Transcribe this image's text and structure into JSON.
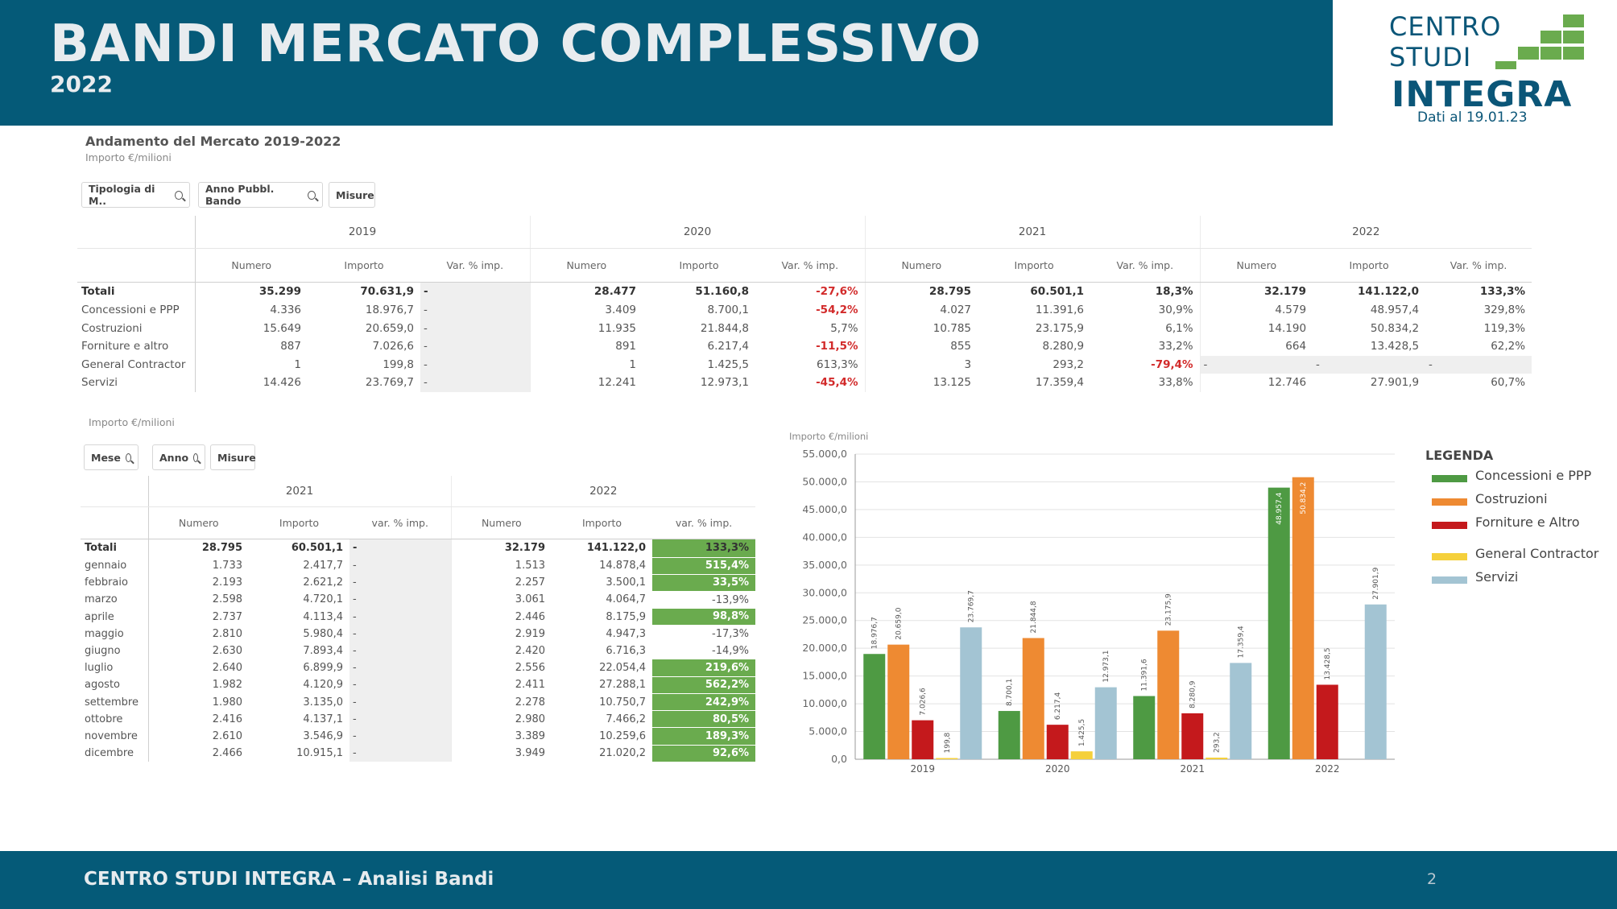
{
  "header": {
    "title": "BANDI MERCATO COMPLESSIVO",
    "year": "2022"
  },
  "logo": {
    "line1": "CENTRO",
    "line2": "STUDI",
    "line3": "INTEGRA",
    "date": "Dati al 19.01.23"
  },
  "footer": {
    "text": "CENTRO STUDI INTEGRA – Analisi Bandi",
    "page": "2"
  },
  "colors": {
    "header_bg": "#055a78",
    "positive_highlight": "#6aab4e",
    "negative_text": "#d22a2a"
  },
  "table1": {
    "title": "Andamento del Mercato 2019-2022",
    "subtitle": "Importo €/milioni",
    "filters": [
      "Tipologia di M..",
      "Anno Pubbl. Bando",
      "Misure"
    ],
    "years": [
      "2019",
      "2020",
      "2021",
      "2022"
    ],
    "col_headers": [
      "Numero",
      "Importo",
      "Var. % imp."
    ],
    "rows": [
      {
        "label": "Totali",
        "c": [
          "35.299",
          "70.631,9",
          "-",
          "28.477",
          "51.160,8",
          "-27,6%",
          "28.795",
          "60.501,1",
          "18,3%",
          "32.179",
          "141.122,0",
          "133,3%"
        ]
      },
      {
        "label": "Concessioni e PPP",
        "c": [
          "4.336",
          "18.976,7",
          "-",
          "3.409",
          "8.700,1",
          "-54,2%",
          "4.027",
          "11.391,6",
          "30,9%",
          "4.579",
          "48.957,4",
          "329,8%"
        ]
      },
      {
        "label": "Costruzioni",
        "c": [
          "15.649",
          "20.659,0",
          "-",
          "11.935",
          "21.844,8",
          "5,7%",
          "10.785",
          "23.175,9",
          "6,1%",
          "14.190",
          "50.834,2",
          "119,3%"
        ]
      },
      {
        "label": "Forniture e altro",
        "c": [
          "887",
          "7.026,6",
          "-",
          "891",
          "6.217,4",
          "-11,5%",
          "855",
          "8.280,9",
          "33,2%",
          "664",
          "13.428,5",
          "62,2%"
        ]
      },
      {
        "label": "General Contractor",
        "c": [
          "1",
          "199,8",
          "-",
          "1",
          "1.425,5",
          "613,3%",
          "3",
          "293,2",
          "-79,4%",
          "-",
          "-",
          "-"
        ]
      },
      {
        "label": "Servizi",
        "c": [
          "14.426",
          "23.769,7",
          "-",
          "12.241",
          "12.973,1",
          "-45,4%",
          "13.125",
          "17.359,4",
          "33,8%",
          "12.746",
          "27.901,9",
          "60,7%"
        ]
      }
    ]
  },
  "table2": {
    "subtitle": "Importo €/milioni",
    "filters": [
      "Mese",
      "Anno",
      "Misure"
    ],
    "years": [
      "2021",
      "2022"
    ],
    "col_headers": [
      "Numero",
      "Importo",
      "var. % imp."
    ],
    "rows": [
      {
        "label": "Totali",
        "c": [
          "28.795",
          "60.501,1",
          "-",
          "32.179",
          "141.122,0",
          "133,3%"
        ]
      },
      {
        "label": "gennaio",
        "c": [
          "1.733",
          "2.417,7",
          "-",
          "1.513",
          "14.878,4",
          "515,4%"
        ]
      },
      {
        "label": "febbraio",
        "c": [
          "2.193",
          "2.621,2",
          "-",
          "2.257",
          "3.500,1",
          "33,5%"
        ]
      },
      {
        "label": "marzo",
        "c": [
          "2.598",
          "4.720,1",
          "-",
          "3.061",
          "4.064,7",
          "-13,9%"
        ]
      },
      {
        "label": "aprile",
        "c": [
          "2.737",
          "4.113,4",
          "-",
          "2.446",
          "8.175,9",
          "98,8%"
        ]
      },
      {
        "label": "maggio",
        "c": [
          "2.810",
          "5.980,4",
          "-",
          "2.919",
          "4.947,3",
          "-17,3%"
        ]
      },
      {
        "label": "giugno",
        "c": [
          "2.630",
          "7.893,4",
          "-",
          "2.420",
          "6.716,3",
          "-14,9%"
        ]
      },
      {
        "label": "luglio",
        "c": [
          "2.640",
          "6.899,9",
          "-",
          "2.556",
          "22.054,4",
          "219,6%"
        ]
      },
      {
        "label": "agosto",
        "c": [
          "1.982",
          "4.120,9",
          "-",
          "2.411",
          "27.288,1",
          "562,2%"
        ]
      },
      {
        "label": "settembre",
        "c": [
          "1.980",
          "3.135,0",
          "-",
          "2.278",
          "10.750,7",
          "242,9%"
        ]
      },
      {
        "label": "ottobre",
        "c": [
          "2.416",
          "4.137,1",
          "-",
          "2.980",
          "7.466,2",
          "80,5%"
        ]
      },
      {
        "label": "novembre",
        "c": [
          "2.610",
          "3.546,9",
          "-",
          "3.389",
          "10.259,6",
          "189,3%"
        ]
      },
      {
        "label": "dicembre",
        "c": [
          "2.466",
          "10.915,1",
          "-",
          "3.949",
          "21.020,2",
          "92,6%"
        ]
      }
    ]
  },
  "chart_data": {
    "type": "bar",
    "ylabel": "Importo €/milioni",
    "categories": [
      "2019",
      "2020",
      "2021",
      "2022"
    ],
    "ylim": [
      0,
      55000
    ],
    "yticks": [
      "0,0",
      "5.000,0",
      "10.000,0",
      "15.000,0",
      "20.000,0",
      "25.000,0",
      "30.000,0",
      "35.000,0",
      "40.000,0",
      "45.000,0",
      "50.000,0",
      "55.000,0"
    ],
    "grid": true,
    "legend_title": "LEGENDA",
    "legend_position": "right",
    "series": [
      {
        "name": "Concessioni e PPP",
        "color": "#4e9a43",
        "values": [
          18976.7,
          8700.1,
          11391.6,
          48957.4
        ],
        "labels": [
          "18.976,7",
          "8.700,1",
          "11.391,6",
          "48.957,4"
        ]
      },
      {
        "name": "Costruzioni",
        "color": "#ee8a32",
        "values": [
          20659.0,
          21844.8,
          23175.9,
          50834.2
        ],
        "labels": [
          "20.659,0",
          "21.844,8",
          "23.175,9",
          "50.834,2"
        ]
      },
      {
        "name": "Forniture e Altro",
        "color": "#c4191c",
        "values": [
          7026.6,
          6217.4,
          8280.9,
          13428.5
        ],
        "labels": [
          "7.026,6",
          "6.217,4",
          "8.280,9",
          "13.428,5"
        ]
      },
      {
        "name": "General Contractor",
        "color": "#f5d03b",
        "values": [
          199.8,
          1425.5,
          293.2,
          0
        ],
        "labels": [
          "199,8",
          "1.425,5",
          "293,2",
          ""
        ]
      },
      {
        "name": "Servizi",
        "color": "#a3c4d3",
        "values": [
          23769.7,
          12973.1,
          17359.4,
          27901.9
        ],
        "labels": [
          "23.769,7",
          "12.973,1",
          "17.359,4",
          "27.901,9"
        ]
      }
    ]
  }
}
